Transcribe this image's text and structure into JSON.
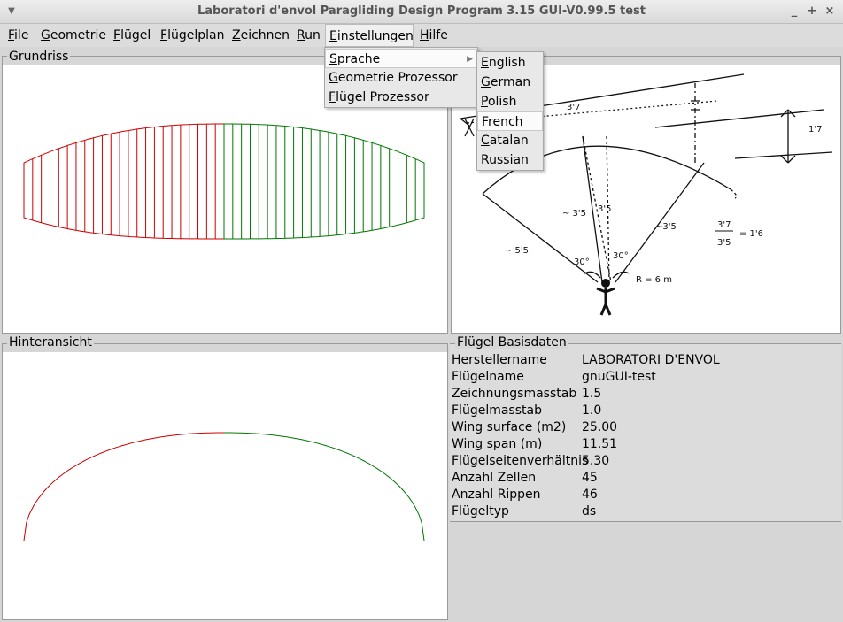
{
  "window": {
    "title": "Laboratori d'envol Paragliding Design Program 3.15 GUI-V0.99.5 test",
    "controls": {
      "minimize": "_",
      "maximize": "+",
      "close": "×"
    }
  },
  "menubar": [
    {
      "label": "File",
      "mnemonic": "F",
      "rest": "ile"
    },
    {
      "label": "Geometrie",
      "mnemonic": "G",
      "rest": "eometrie"
    },
    {
      "label": "Flügel",
      "mnemonic": "F",
      "rest": "lügel"
    },
    {
      "label": "Flügelplan",
      "mnemonic": "F",
      "rest": "lügelplan"
    },
    {
      "label": "Zeichnen",
      "mnemonic": "Z",
      "rest": "eichnen"
    },
    {
      "label": "Run",
      "mnemonic": "R",
      "rest": "un"
    },
    {
      "label": "Einstellungen",
      "mnemonic": "E",
      "rest": "instellungen"
    },
    {
      "label": "Hilfe",
      "mnemonic": "H",
      "rest": "ilfe"
    }
  ],
  "einstellungen_menu": [
    {
      "mnemonic": "S",
      "rest": "prache",
      "has_submenu": true
    },
    {
      "mnemonic": "G",
      "rest": "eometrie Prozessor",
      "has_submenu": false
    },
    {
      "mnemonic": "F",
      "rest": "lügel Prozessor",
      "has_submenu": false
    }
  ],
  "sprache_menu": [
    {
      "mnemonic": "E",
      "rest": "nglish"
    },
    {
      "mnemonic": "G",
      "rest": "erman"
    },
    {
      "mnemonic": "P",
      "rest": "olish"
    },
    {
      "mnemonic": "F",
      "rest": "rench",
      "highlighted": true
    },
    {
      "mnemonic": "C",
      "rest": "atalan"
    },
    {
      "mnemonic": "R",
      "rest": "ussian"
    }
  ],
  "panels": {
    "grundriss": "Grundriss",
    "hinteransicht": "Hinteransicht",
    "basisdaten": "Flügel Basisdaten"
  },
  "basisdaten": [
    {
      "key": "Herstellername",
      "value": "LABORATORI D'ENVOL"
    },
    {
      "key": "Flügelname",
      "value": "gnuGUI-test"
    },
    {
      "key": "Zeichnungsmasstab",
      "value": "1.5"
    },
    {
      "key": "Flügelmasstab",
      "value": "1.0"
    },
    {
      "key": "Wing surface (m2)",
      "value": "25.00"
    },
    {
      "key": "Wing span (m)",
      "value": "11.51"
    },
    {
      "key": "Flügelseitenverhältnis",
      "value": "5.30"
    },
    {
      "key": "Anzahl Zellen",
      "value": "45"
    },
    {
      "key": "Anzahl Rippen",
      "value": "46"
    },
    {
      "key": "Flügeltyp",
      "value": "ds"
    }
  ],
  "sketch_labels": {
    "a": "3'7",
    "b": "1'7",
    "c": "~ 3'5",
    "d": "3'5",
    "e": "~ 5'5",
    "f": "~3'5",
    "g": "3'7",
    "h": "3'5",
    "i": "= 1'6",
    "j": "30°",
    "k": "30°",
    "l": "R = 6 m"
  },
  "colors": {
    "left_half": "#cc0000",
    "right_half": "#007700",
    "center": "#0000cc"
  }
}
